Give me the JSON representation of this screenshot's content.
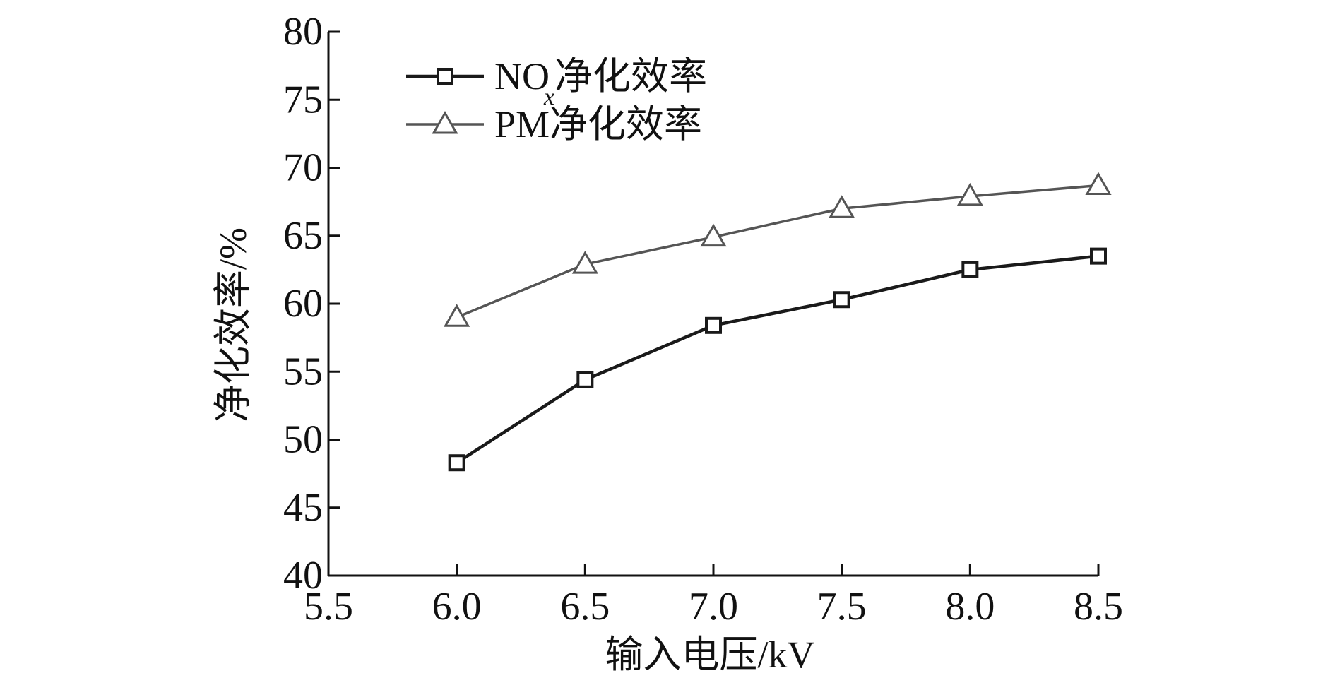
{
  "chart_data": {
    "type": "line",
    "title": "",
    "xlabel": "输入电压/kV",
    "ylabel": "净化效率/%",
    "xlim": [
      5.5,
      8.5
    ],
    "ylim": [
      40,
      80
    ],
    "xticks": [
      5.5,
      6.0,
      6.5,
      7.0,
      7.5,
      8.0,
      8.5
    ],
    "xtick_labels": [
      "5.5",
      "6.0",
      "6.5",
      "7.0",
      "7.5",
      "8.0",
      "8.5"
    ],
    "yticks": [
      40,
      45,
      50,
      55,
      60,
      65,
      70,
      75,
      80
    ],
    "ytick_labels": [
      "40",
      "45",
      "50",
      "55",
      "60",
      "65",
      "70",
      "75",
      "80"
    ],
    "grid": false,
    "legend_position": "top-left",
    "x": [
      6.0,
      6.5,
      7.0,
      7.5,
      8.0,
      8.5
    ],
    "series": [
      {
        "name": "NOx净化效率",
        "legend_main": "NO",
        "legend_sub": "x",
        "legend_suffix": "净化效率",
        "marker": "square",
        "color": "#1a1a1a",
        "values": [
          48.3,
          54.4,
          58.4,
          60.3,
          62.5,
          63.5
        ]
      },
      {
        "name": "PM净化效率",
        "legend_main": "PM净化效率",
        "legend_sub": "",
        "legend_suffix": "",
        "marker": "triangle",
        "color": "#555555",
        "values": [
          59.0,
          62.9,
          64.9,
          67.0,
          67.9,
          68.7
        ]
      }
    ]
  }
}
